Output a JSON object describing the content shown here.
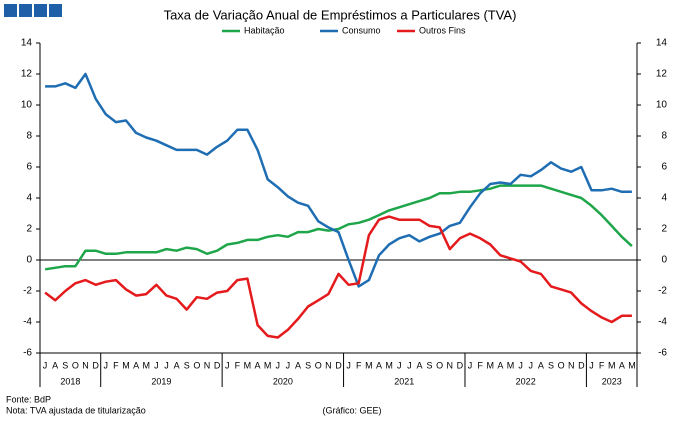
{
  "chart_data": {
    "type": "line",
    "title": "Taxa de Variação Anual de Empréstimos a Particulares (TVA)",
    "categories": [
      "J",
      "A",
      "S",
      "O",
      "N",
      "D",
      "J",
      "F",
      "M",
      "A",
      "M",
      "J",
      "J",
      "A",
      "S",
      "O",
      "N",
      "D",
      "J",
      "F",
      "M",
      "A",
      "M",
      "J",
      "J",
      "A",
      "S",
      "O",
      "N",
      "D",
      "J",
      "F",
      "M",
      "A",
      "M",
      "J",
      "J",
      "A",
      "S",
      "O",
      "N",
      "D",
      "J",
      "F",
      "M",
      "A",
      "M",
      "J",
      "J",
      "A",
      "S",
      "O",
      "N",
      "D",
      "J",
      "F",
      "M",
      "A",
      "M"
    ],
    "year_labels": [
      "2018",
      "2019",
      "2020",
      "2021",
      "2022",
      "2023"
    ],
    "series": [
      {
        "name": "Habitação",
        "color": "#1fa64a",
        "values": [
          -0.6,
          -0.5,
          -0.4,
          -0.4,
          0.6,
          0.6,
          0.4,
          0.4,
          0.5,
          0.5,
          0.5,
          0.5,
          0.7,
          0.6,
          0.8,
          0.7,
          0.4,
          0.6,
          1.0,
          1.1,
          1.3,
          1.3,
          1.5,
          1.6,
          1.5,
          1.8,
          1.8,
          2.0,
          1.9,
          2.0,
          2.3,
          2.4,
          2.6,
          2.9,
          3.2,
          3.4,
          3.6,
          3.8,
          4.0,
          4.3,
          4.3,
          4.4,
          4.4,
          4.5,
          4.6,
          4.8,
          4.8,
          4.8,
          4.8,
          4.8,
          4.6,
          4.4,
          4.2,
          4.0,
          3.5,
          2.9,
          2.2,
          1.5,
          0.9
        ]
      },
      {
        "name": "Consumo",
        "color": "#1f6db3",
        "values": [
          11.2,
          11.2,
          11.4,
          11.1,
          12.0,
          10.4,
          9.4,
          8.9,
          9.0,
          8.2,
          7.9,
          7.7,
          7.4,
          7.1,
          7.1,
          7.1,
          6.8,
          7.3,
          7.7,
          8.4,
          8.4,
          7.1,
          5.2,
          4.7,
          4.1,
          3.7,
          3.5,
          2.5,
          2.1,
          1.8,
          0.0,
          -1.7,
          -1.3,
          0.3,
          1.0,
          1.4,
          1.6,
          1.2,
          1.5,
          1.7,
          2.2,
          2.4,
          3.4,
          4.3,
          4.9,
          5.0,
          4.9,
          5.5,
          5.4,
          5.8,
          6.3,
          5.9,
          5.7,
          6.0,
          4.5,
          4.5,
          4.6,
          4.4,
          4.4
        ]
      },
      {
        "name": "Outros Fins",
        "color": "#e41a1c",
        "values": [
          -2.1,
          -2.6,
          -2.0,
          -1.5,
          -1.3,
          -1.6,
          -1.4,
          -1.3,
          -1.9,
          -2.3,
          -2.2,
          -1.6,
          -2.3,
          -2.5,
          -3.2,
          -2.4,
          -2.5,
          -2.1,
          -2.0,
          -1.3,
          -1.2,
          -4.2,
          -4.9,
          -5.0,
          -4.5,
          -3.8,
          -3.0,
          -2.6,
          -2.2,
          -0.9,
          -1.6,
          -1.5,
          1.6,
          2.6,
          2.8,
          2.6,
          2.6,
          2.6,
          2.2,
          2.1,
          0.7,
          1.4,
          1.7,
          1.4,
          1.0,
          0.3,
          0.1,
          -0.1,
          -0.7,
          -0.9,
          -1.7,
          -1.9,
          -2.1,
          -2.8,
          -3.3,
          -3.7,
          -4.0,
          -3.6,
          -3.6
        ]
      }
    ],
    "ylim": [
      -6,
      14
    ],
    "yticks": [
      -6,
      -4,
      -2,
      0,
      2,
      4,
      6,
      8,
      10,
      12,
      14
    ],
    "y2lim": [
      -6,
      14
    ],
    "y2ticks": [
      -6,
      -4,
      -2,
      0,
      2,
      4,
      6,
      8,
      10,
      12,
      14
    ],
    "legend": "top",
    "source": "Fonte: BdP",
    "note": "Nota: TVA ajustada de titularização",
    "credit": "(Gráfico: GEE)"
  }
}
